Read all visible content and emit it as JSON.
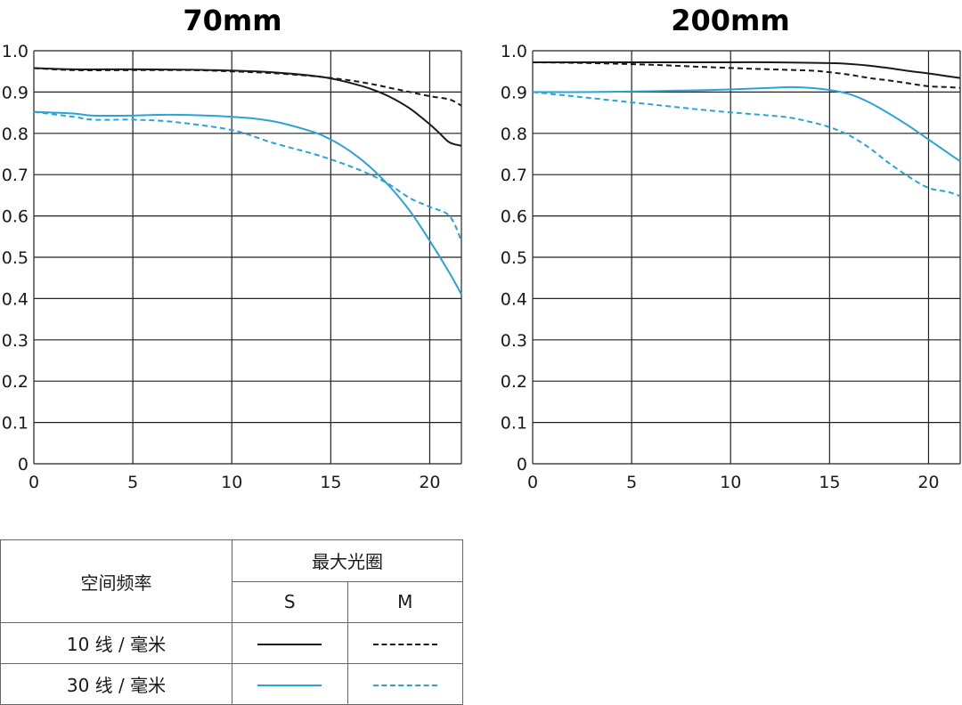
{
  "chart_data": [
    {
      "type": "line",
      "title": "70mm",
      "xlim": [
        0,
        21.6
      ],
      "ylim": [
        0,
        1.0
      ],
      "x_ticks": [
        "0",
        "5",
        "10",
        "15",
        "20"
      ],
      "y_ticks": [
        "0",
        "0.1",
        "0.2",
        "0.3",
        "0.4",
        "0.5",
        "0.6",
        "0.7",
        "0.8",
        "0.9",
        "1.0"
      ],
      "grid": true,
      "series": [
        {
          "name": "10 线 / 毫米 S",
          "color": "#1a1a1a",
          "dash": "solid",
          "x": [
            0,
            2,
            5,
            8,
            10,
            12,
            14,
            15,
            16,
            17,
            18,
            19,
            20,
            20.5,
            21,
            21.6
          ],
          "y": [
            0.958,
            0.955,
            0.955,
            0.954,
            0.952,
            0.948,
            0.94,
            0.933,
            0.922,
            0.908,
            0.888,
            0.86,
            0.822,
            0.8,
            0.778,
            0.77
          ]
        },
        {
          "name": "10 线 / 毫米 M",
          "color": "#1a1a1a",
          "dash": "dashed",
          "x": [
            0,
            2,
            5,
            8,
            10,
            12,
            14,
            15,
            16,
            17,
            18,
            19,
            20,
            21,
            21.6
          ],
          "y": [
            0.958,
            0.953,
            0.953,
            0.953,
            0.95,
            0.946,
            0.939,
            0.934,
            0.928,
            0.92,
            0.91,
            0.9,
            0.89,
            0.882,
            0.867
          ]
        },
        {
          "name": "30 线 / 毫米 S",
          "color": "#2aa3d6",
          "dash": "solid",
          "x": [
            0,
            2,
            3,
            5,
            7,
            10,
            12,
            14,
            15,
            16,
            17,
            18,
            19,
            20,
            21,
            21.6
          ],
          "y": [
            0.852,
            0.848,
            0.843,
            0.843,
            0.845,
            0.84,
            0.83,
            0.805,
            0.785,
            0.756,
            0.718,
            0.67,
            0.612,
            0.54,
            0.462,
            0.41
          ]
        },
        {
          "name": "30 线 / 毫米 M",
          "color": "#2aa3d6",
          "dash": "dashed",
          "x": [
            0,
            2,
            3,
            5,
            7,
            10,
            12,
            14,
            15,
            16,
            17,
            18,
            19,
            20,
            21,
            21.6
          ],
          "y": [
            0.852,
            0.84,
            0.833,
            0.833,
            0.828,
            0.808,
            0.778,
            0.752,
            0.737,
            0.72,
            0.7,
            0.675,
            0.643,
            0.622,
            0.6,
            0.54
          ]
        }
      ]
    },
    {
      "type": "line",
      "title": "200mm",
      "xlim": [
        0,
        21.6
      ],
      "ylim": [
        0,
        1.0
      ],
      "x_ticks": [
        "0",
        "5",
        "10",
        "15",
        "20"
      ],
      "y_ticks": [
        "0",
        "0.1",
        "0.2",
        "0.3",
        "0.4",
        "0.5",
        "0.6",
        "0.7",
        "0.8",
        "0.9",
        "1.0"
      ],
      "grid": true,
      "series": [
        {
          "name": "10 线 / 毫米 S",
          "color": "#1a1a1a",
          "dash": "solid",
          "x": [
            0,
            3,
            6,
            9,
            12,
            15,
            16,
            17,
            18,
            19,
            20,
            21,
            21.6
          ],
          "y": [
            0.972,
            0.972,
            0.972,
            0.972,
            0.972,
            0.97,
            0.968,
            0.964,
            0.958,
            0.951,
            0.945,
            0.938,
            0.934
          ]
        },
        {
          "name": "10 线 / 毫米 M",
          "color": "#1a1a1a",
          "dash": "dashed",
          "x": [
            0,
            3,
            6,
            9,
            12,
            14,
            15,
            16,
            17,
            18,
            19,
            20,
            21,
            21.6
          ],
          "y": [
            0.972,
            0.97,
            0.966,
            0.96,
            0.955,
            0.952,
            0.948,
            0.942,
            0.934,
            0.928,
            0.921,
            0.914,
            0.912,
            0.91
          ]
        },
        {
          "name": "30 线 / 毫米 S",
          "color": "#2aa3d6",
          "dash": "solid",
          "x": [
            0,
            3,
            6,
            9,
            12,
            13,
            14,
            15,
            16,
            17,
            18,
            19,
            20,
            21,
            21.6
          ],
          "y": [
            0.9,
            0.9,
            0.902,
            0.905,
            0.91,
            0.912,
            0.91,
            0.905,
            0.895,
            0.875,
            0.848,
            0.818,
            0.785,
            0.752,
            0.732
          ]
        },
        {
          "name": "30 线 / 毫米 M",
          "color": "#2aa3d6",
          "dash": "dashed",
          "x": [
            0,
            3,
            6,
            9,
            12,
            13,
            14,
            15,
            16,
            17,
            18,
            19,
            20,
            21,
            21.6
          ],
          "y": [
            0.9,
            0.885,
            0.87,
            0.855,
            0.843,
            0.838,
            0.828,
            0.815,
            0.795,
            0.765,
            0.728,
            0.695,
            0.668,
            0.658,
            0.648
          ]
        }
      ]
    }
  ],
  "legend": {
    "header_freq": "空间频率",
    "header_aperture": "最大光圈",
    "col_s": "S",
    "col_m": "M",
    "row1_label": "10 线 / 毫米",
    "row2_label": "30 线 / 毫米",
    "colors": {
      "black": "#1a1a1a",
      "blue": "#2aa3d6"
    }
  }
}
